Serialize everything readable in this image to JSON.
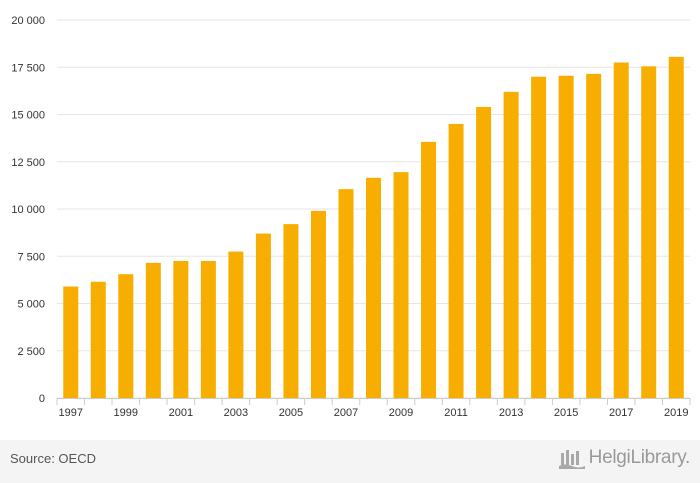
{
  "chart_data": {
    "type": "bar",
    "title": "",
    "xlabel": "",
    "ylabel": "",
    "categories": [
      "1997",
      "1998",
      "1999",
      "2000",
      "2001",
      "2002",
      "2003",
      "2004",
      "2005",
      "2006",
      "2007",
      "2008",
      "2009",
      "2010",
      "2011",
      "2012",
      "2013",
      "2014",
      "2015",
      "2016",
      "2017",
      "2018",
      "2019"
    ],
    "x_tick_labels": [
      "1997",
      "1999",
      "2001",
      "2003",
      "2005",
      "2007",
      "2009",
      "2011",
      "2013",
      "2015",
      "2017",
      "2019"
    ],
    "values": [
      5900,
      6150,
      6550,
      7150,
      7250,
      7250,
      7750,
      8700,
      9200,
      9900,
      11050,
      11650,
      11950,
      13550,
      14500,
      15400,
      16200,
      17000,
      17050,
      17150,
      17750,
      17550,
      18050
    ],
    "ylim": [
      0,
      20000
    ],
    "yticks": [
      0,
      2500,
      5000,
      7500,
      10000,
      12500,
      15000,
      17500,
      20000
    ],
    "ytick_labels": [
      "0",
      "2 500",
      "5 000",
      "7 500",
      "10 000",
      "12 500",
      "15 000",
      "17 500",
      "20 000"
    ],
    "grid": true,
    "legend": "none",
    "bar_color": "#F7AE00"
  },
  "footer": {
    "source": "Source: OECD",
    "brand": "HelgiLibrary."
  },
  "icons": {
    "brand_icon": "library-logo-icon"
  }
}
